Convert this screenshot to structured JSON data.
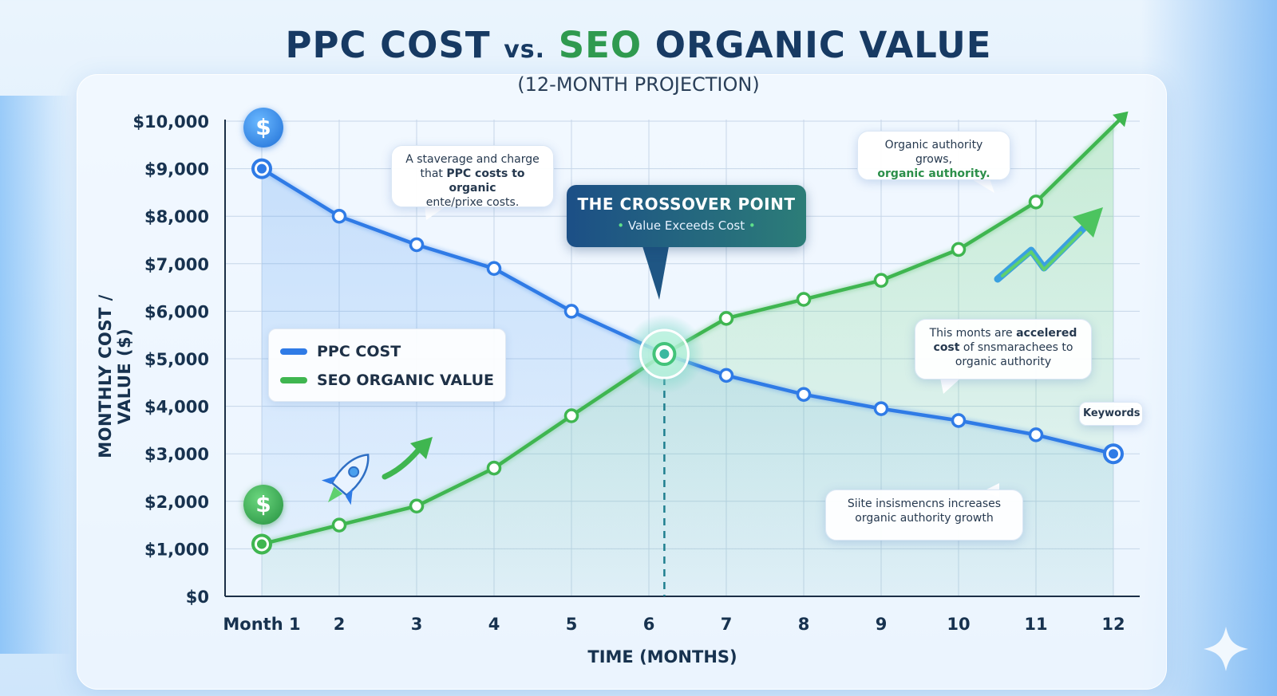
{
  "title": {
    "part1": "PPC COST",
    "vs": "vs.",
    "part2": "SEO",
    "part3": "ORGANIC VALUE"
  },
  "subtitle": "(12-MONTH PROJECTION)",
  "colors": {
    "ppc": "#2f7be6",
    "seo": "#3fb650",
    "title": "#173a63",
    "crossover": "#1c4f86"
  },
  "legend": {
    "ppc": "PPC COST",
    "seo": "SEO ORGANIC VALUE"
  },
  "crossover": {
    "title": "THE CROSSOVER POINT",
    "subtitle": "Value Exceeds Cost",
    "bullet": "•",
    "month": 6.2,
    "value": 5100
  },
  "annotations": {
    "ppc_note": {
      "line1": "A staverage and charge",
      "line2a": "that ",
      "line2b": "PPC costs to organic",
      "line3": "ente/prixe costs."
    },
    "authority_note": {
      "line1": "Organic authority grows,",
      "line2": "organic authority."
    },
    "accelerated_note": {
      "line1a": "This monts are ",
      "line1b": "accelered",
      "line2a": "cost",
      "line2b": " of snsmarachees to",
      "line3": "organic authority"
    },
    "growth_note": {
      "line1": "Siite insismencns increases",
      "line2": "organic authority growth"
    },
    "keywords": "Keywords"
  },
  "icons": {
    "coin_top": "dollar-coin-icon",
    "coin_bottom": "dollar-coin-icon",
    "coin_symbol": "$"
  },
  "chart_data": {
    "type": "line",
    "title": "PPC COST vs. SEO ORGANIC VALUE",
    "subtitle": "(12-MONTH PROJECTION)",
    "xlabel": "TIME (MONTHS)",
    "ylabel": "MONTHLY COST / VALUE ($)",
    "categories": [
      "Month 1",
      "2",
      "3",
      "4",
      "5",
      "6",
      "7",
      "8",
      "9",
      "10",
      "11",
      "12"
    ],
    "y_ticks": [
      "$0",
      "$1,000",
      "$2,000",
      "$3,000",
      "$4,000",
      "$5,000",
      "$6,000",
      "$7,000",
      "$8,000",
      "$9,000",
      "$10,000"
    ],
    "ylim": [
      0,
      10000
    ],
    "grid": true,
    "legend_position": "middle-left",
    "series": [
      {
        "name": "PPC COST",
        "color": "#2f7be6",
        "x": [
          1,
          2,
          3,
          4,
          5,
          7,
          8,
          9,
          10,
          11,
          12
        ],
        "values": [
          9000,
          8000,
          7400,
          6900,
          6000,
          4650,
          4250,
          3950,
          3700,
          3400,
          3000
        ]
      },
      {
        "name": "SEO ORGANIC VALUE",
        "color": "#3fb650",
        "x": [
          1,
          2,
          3,
          4,
          5,
          7,
          8,
          9,
          10,
          11,
          12
        ],
        "values": [
          1100,
          1500,
          1900,
          2700,
          3800,
          5850,
          6250,
          6650,
          7300,
          8300,
          9900
        ]
      }
    ]
  }
}
